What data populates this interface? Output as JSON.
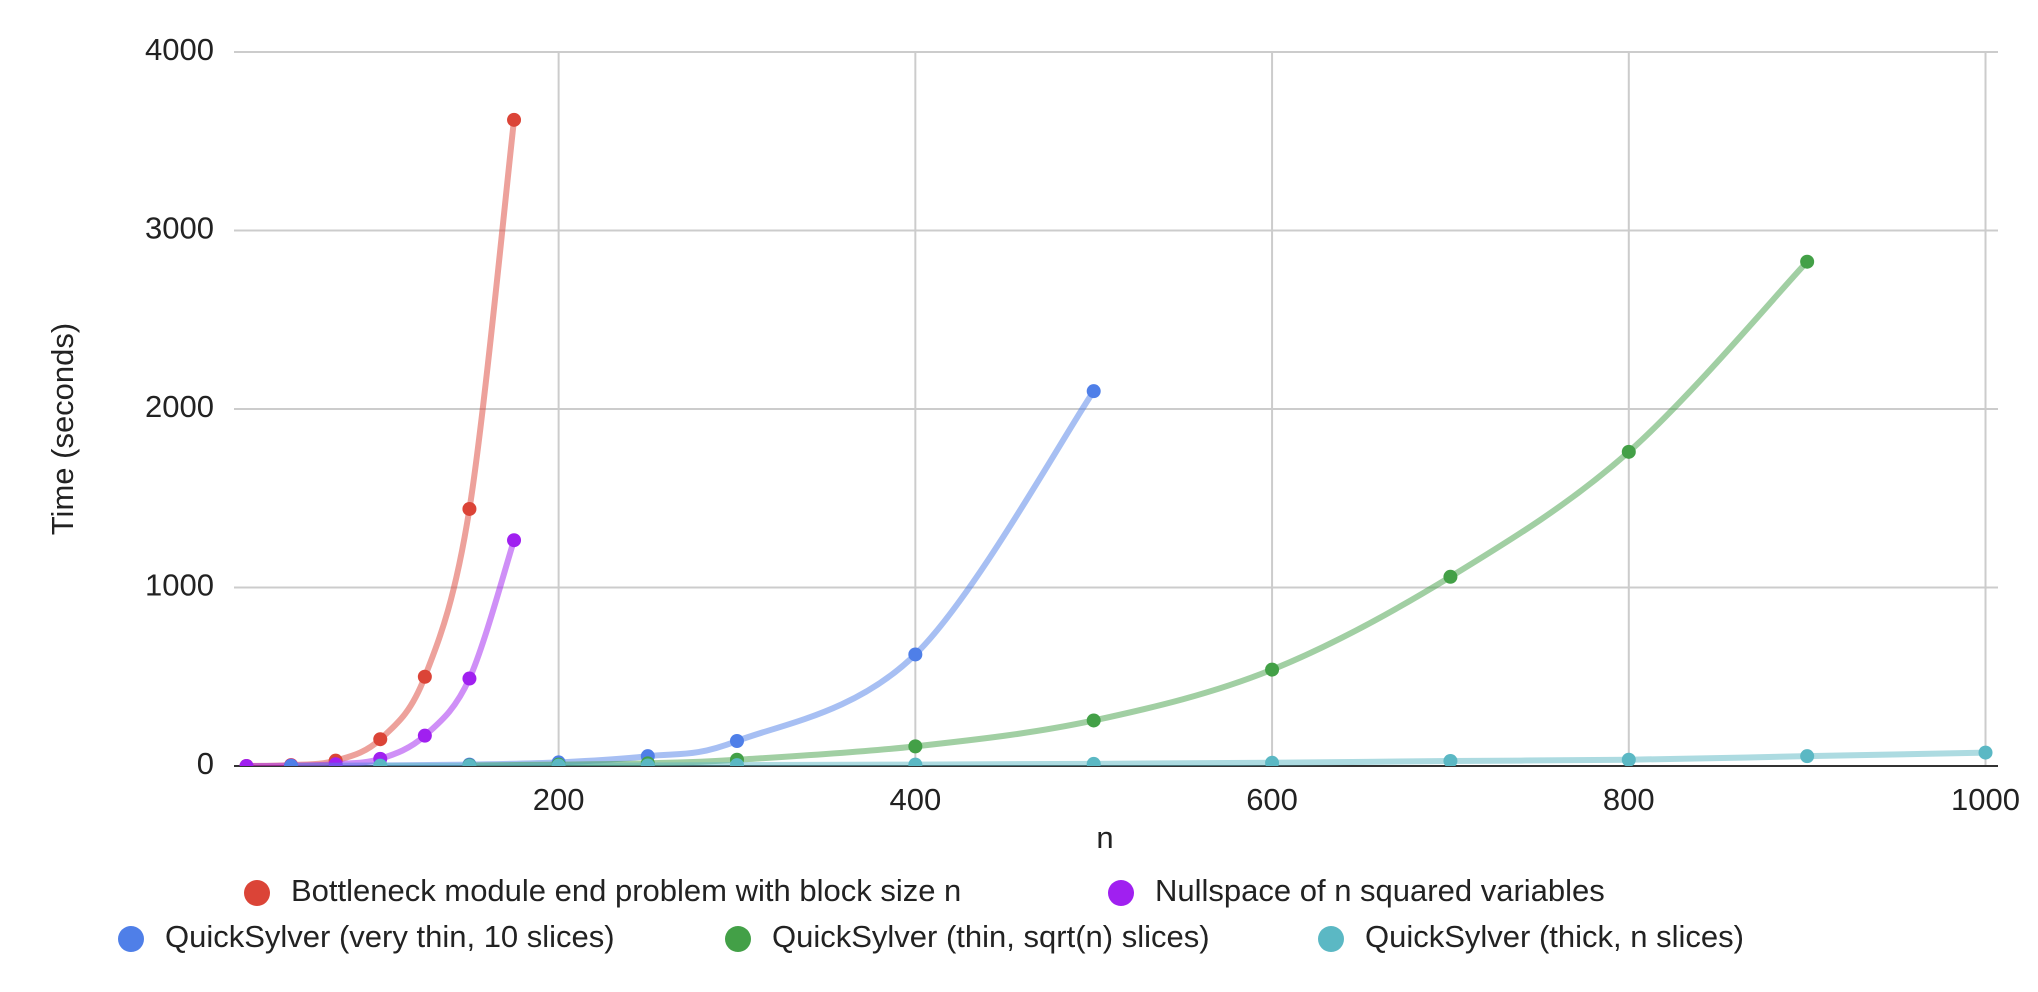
{
  "chart_data": {
    "type": "line",
    "x_label": "n",
    "y_label": "Time (seconds)",
    "xlim": [
      18,
      1007
    ],
    "xticks": [
      200,
      400,
      600,
      800,
      1000
    ],
    "ylim": [
      0,
      4000
    ],
    "yticks": [
      0,
      1000,
      2000,
      3000,
      4000
    ],
    "grid": true,
    "series": [
      {
        "name": "Bottleneck module end problem with block size n",
        "color": "#db4437",
        "x": [
          25,
          50,
          75,
          100,
          125,
          150,
          175
        ],
        "values": [
          0,
          5,
          30,
          150,
          500,
          1440,
          3620
        ]
      },
      {
        "name": "Nullspace of n squared variables",
        "color": "#a020f0",
        "x": [
          25,
          50,
          75,
          100,
          125,
          150,
          175
        ],
        "values": [
          0,
          2,
          10,
          40,
          170,
          490,
          1265
        ]
      },
      {
        "name": "QuickSylver (very thin, 10 slices)",
        "color": "#4f7fe8",
        "x": [
          50,
          100,
          150,
          200,
          250,
          300,
          400,
          500
        ],
        "values": [
          1,
          3,
          8,
          20,
          55,
          140,
          625,
          2100
        ]
      },
      {
        "name": "QuickSylver (thin, sqrt(n) slices)",
        "color": "#43a047",
        "x": [
          150,
          200,
          250,
          300,
          400,
          500,
          600,
          700,
          800,
          900
        ],
        "values": [
          3,
          8,
          15,
          35,
          110,
          255,
          540,
          1060,
          1760,
          2825
        ]
      },
      {
        "name": "QuickSylver (thick, n slices)",
        "color": "#5bb8c4",
        "x": [
          100,
          150,
          200,
          250,
          300,
          400,
          500,
          600,
          700,
          800,
          900,
          1000
        ],
        "values": [
          0.5,
          1,
          2,
          3,
          5,
          8,
          12,
          18,
          28,
          35,
          55,
          75
        ]
      }
    ]
  }
}
